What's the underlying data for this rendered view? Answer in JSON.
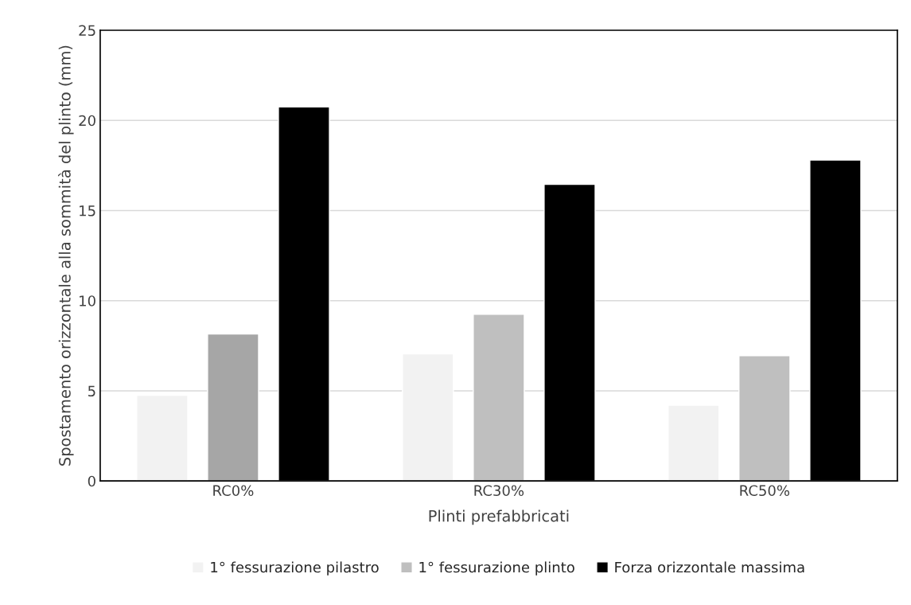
{
  "chart_data": {
    "type": "bar",
    "xlabel": "Plinti prefabbricati",
    "ylabel": "Spostamento orizzontale alla sommità del plinto (mm)",
    "categories": [
      "RC0%",
      "RC30%",
      "RC50%"
    ],
    "series": [
      {
        "name": "1° fessurazione pilastro",
        "color": "#f2f2f2",
        "values": [
          4.75,
          7.05,
          4.2
        ]
      },
      {
        "name": "1° fessurazione plinto",
        "color": "#bfbfbf",
        "colors": [
          "#a6a6a6",
          "#bfbfbf",
          "#bfbfbf"
        ],
        "values": [
          8.15,
          9.25,
          6.95
        ]
      },
      {
        "name": "Forza orizzontale massima",
        "color": "#000000",
        "values": [
          20.75,
          16.45,
          17.8
        ]
      }
    ],
    "ylim": [
      0,
      25
    ],
    "yticks": [
      0,
      5,
      10,
      15,
      20,
      25
    ],
    "grid": "y",
    "legend": "bottom"
  }
}
